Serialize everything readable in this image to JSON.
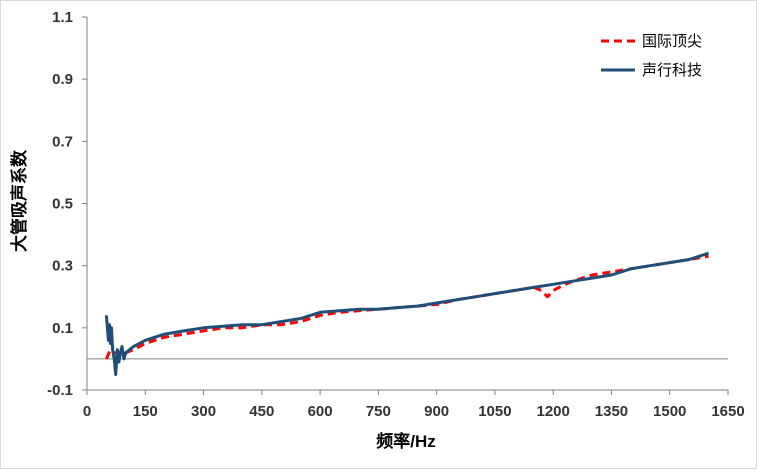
{
  "chart_data": {
    "type": "line",
    "xlabel": "频率/Hz",
    "ylabel": "大管吸声系数",
    "xlim": [
      0,
      1650
    ],
    "ylim": [
      -0.1,
      1.1
    ],
    "x_ticks": [
      0,
      150,
      300,
      450,
      600,
      750,
      900,
      1050,
      1200,
      1350,
      1500,
      1650
    ],
    "y_ticks": [
      -0.1,
      0.1,
      0.3,
      0.5,
      0.7,
      0.9,
      1.1
    ],
    "x_tick_labels": [
      "0",
      "150",
      "300",
      "450",
      "600",
      "750",
      "900",
      "1050",
      "1200",
      "1350",
      "1500",
      "1650"
    ],
    "y_tick_labels": [
      "-0.1",
      "0.1",
      "0.3",
      "0.5",
      "0.7",
      "0.9",
      "1.1"
    ],
    "grid": false,
    "zero_line": true,
    "legend_position": "top-right",
    "series": [
      {
        "name": "国际顶尖",
        "style": "dashed",
        "color": "#ff0000",
        "x": [
          50,
          60,
          70,
          80,
          90,
          100,
          120,
          150,
          200,
          250,
          300,
          350,
          400,
          450,
          500,
          550,
          600,
          650,
          700,
          750,
          800,
          850,
          900,
          950,
          1000,
          1050,
          1100,
          1150,
          1170,
          1185,
          1200,
          1215,
          1250,
          1300,
          1350,
          1400,
          1450,
          1500,
          1550,
          1600
        ],
        "values": [
          0.0,
          0.03,
          0.02,
          0.02,
          0.02,
          0.02,
          0.03,
          0.05,
          0.07,
          0.08,
          0.09,
          0.1,
          0.1,
          0.11,
          0.11,
          0.12,
          0.14,
          0.15,
          0.155,
          0.16,
          0.165,
          0.17,
          0.175,
          0.19,
          0.2,
          0.21,
          0.22,
          0.23,
          0.22,
          0.2,
          0.22,
          0.23,
          0.25,
          0.27,
          0.28,
          0.29,
          0.3,
          0.31,
          0.32,
          0.33
        ]
      },
      {
        "name": "声行科技",
        "style": "solid",
        "color": "#1f4e79",
        "x": [
          50,
          55,
          58,
          60,
          63,
          66,
          70,
          74,
          78,
          82,
          86,
          90,
          95,
          100,
          110,
          120,
          150,
          200,
          250,
          300,
          350,
          400,
          450,
          500,
          550,
          600,
          650,
          700,
          750,
          800,
          850,
          900,
          950,
          1000,
          1050,
          1100,
          1150,
          1200,
          1250,
          1300,
          1350,
          1400,
          1450,
          1500,
          1550,
          1600
        ],
        "values": [
          0.14,
          0.06,
          0.11,
          0.05,
          0.1,
          0.03,
          0.0,
          -0.05,
          0.03,
          -0.01,
          0.02,
          0.04,
          0.0,
          0.02,
          0.03,
          0.04,
          0.06,
          0.08,
          0.09,
          0.1,
          0.105,
          0.11,
          0.11,
          0.12,
          0.13,
          0.15,
          0.155,
          0.16,
          0.16,
          0.165,
          0.17,
          0.18,
          0.19,
          0.2,
          0.21,
          0.22,
          0.23,
          0.24,
          0.25,
          0.26,
          0.27,
          0.29,
          0.3,
          0.31,
          0.32,
          0.34
        ]
      }
    ]
  }
}
